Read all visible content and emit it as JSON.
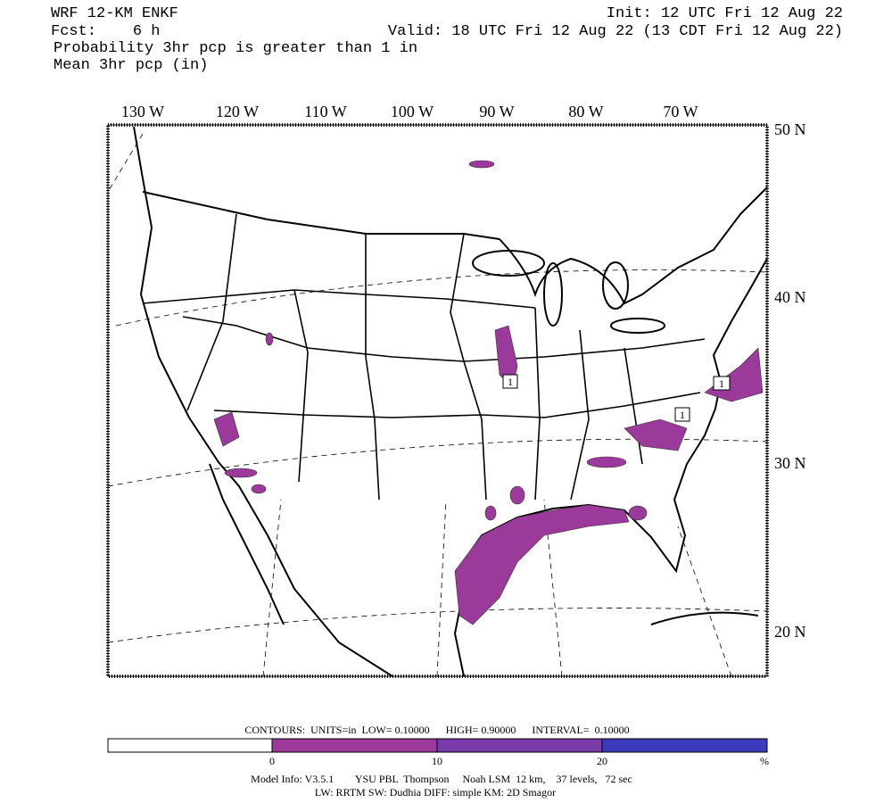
{
  "header": {
    "model": "WRF 12-KM ENKF",
    "init": "Init: 12 UTC Fri 12 Aug 22",
    "fcst": "Fcst:    6 h",
    "valid": "Valid: 18 UTC Fri 12 Aug 22 (13 CDT Fri 12 Aug 22)",
    "field": "Probability 3hr pcp is greater than 1 in",
    "mean": "Mean 3hr pcp (in)"
  },
  "map": {
    "lon_labels": [
      "130 W",
      "120 W",
      "110 W",
      "100 W",
      "90 W",
      "80 W",
      "70 W"
    ],
    "lat_labels": [
      "50 N",
      "40 N",
      "30 N",
      "20 N"
    ],
    "contour_labels": [
      "1",
      "1",
      "1"
    ]
  },
  "colorbar": {
    "contours": "CONTOURS:  UNITS=in  LOW= 0.10000      HIGH= 0.90000      INTERVAL=  0.10000",
    "ticks": [
      "0",
      "10",
      "20"
    ],
    "unit": "%"
  },
  "footer": {
    "line1": "Model Info: V3.5.1        YSU PBL  Thompson     Noah LSM  12 km,    37 levels,   72 sec",
    "line2": "LW: RRTM SW: Dudhia  DIFF: simple KM: 2D Smagor"
  }
}
